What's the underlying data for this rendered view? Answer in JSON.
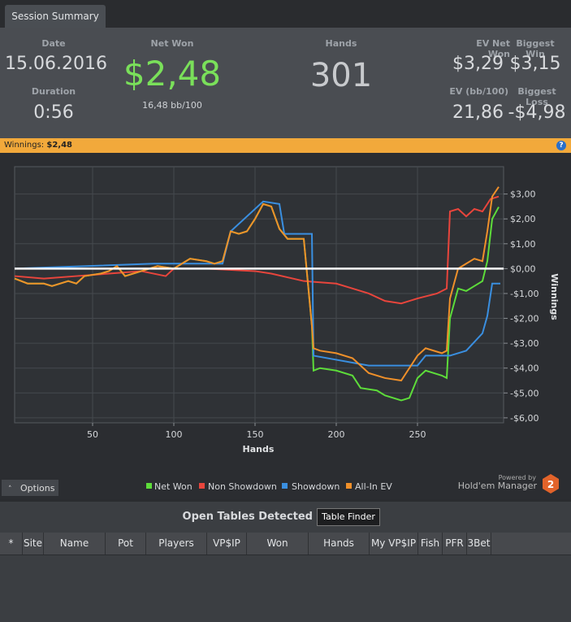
{
  "tab": "Session Summary",
  "summary": {
    "date_label": "Date",
    "date": "15.06.2016",
    "duration_label": "Duration",
    "duration": "0:56",
    "net_won_label": "Net Won",
    "net_won": "$2,48",
    "net_won_bb": "16,48 bb/100",
    "hands_label": "Hands",
    "hands": "301",
    "ev_net_won_label": "EV Net Won",
    "ev_net_won": "$3,29",
    "biggest_win_label": "Biggest Win",
    "biggest_win": "$3,15",
    "ev_bb_label": "EV (bb/100)",
    "ev_bb": "21,86",
    "biggest_loss_label": "Biggest Loss",
    "biggest_loss": "-$4,98"
  },
  "winnings_bar": {
    "label": "Winnings:",
    "value": "$2,48",
    "help": "?"
  },
  "chart_data": {
    "type": "line",
    "x_label": "Hands",
    "y_label": "Winnings",
    "xlim": [
      2,
      303
    ],
    "xticks": [
      50,
      100,
      150,
      200,
      250
    ],
    "ylim": [
      -6.2,
      4.1
    ],
    "yticks": [
      {
        "value": 3,
        "label": "$3,00"
      },
      {
        "value": 2,
        "label": "$2,00"
      },
      {
        "value": 1,
        "label": "$1,00"
      },
      {
        "value": 0,
        "label": "$0,00"
      },
      {
        "value": -1,
        "label": "-$1,00"
      },
      {
        "value": -2,
        "label": "-$2,00"
      },
      {
        "value": -3,
        "label": "-$3,00"
      },
      {
        "value": -4,
        "label": "-$4,00"
      },
      {
        "value": -5,
        "label": "-$5,00"
      },
      {
        "value": -6,
        "label": "-$6,00"
      }
    ],
    "grid": true,
    "series": [
      {
        "name": "Net Won",
        "color": "#5ddc3a",
        "x": [
          2,
          10,
          20,
          25,
          35,
          40,
          45,
          55,
          60,
          65,
          70,
          80,
          90,
          100,
          105,
          110,
          120,
          125,
          130,
          135,
          140,
          145,
          150,
          155,
          160,
          165,
          170,
          180,
          185,
          186,
          190,
          200,
          210,
          215,
          225,
          230,
          240,
          245,
          250,
          255,
          265,
          268,
          270,
          275,
          280,
          285,
          290,
          293,
          296,
          300
        ],
        "values": [
          -0.4,
          -0.6,
          -0.6,
          -0.7,
          -0.5,
          -0.6,
          -0.3,
          -0.2,
          -0.1,
          0.1,
          -0.3,
          -0.1,
          0.1,
          0.0,
          0.2,
          0.4,
          0.3,
          0.2,
          0.3,
          1.5,
          1.4,
          1.5,
          2.0,
          2.6,
          2.5,
          1.6,
          1.2,
          1.2,
          -2.3,
          -4.1,
          -4.0,
          -4.1,
          -4.3,
          -4.8,
          -4.9,
          -5.1,
          -5.3,
          -5.2,
          -4.4,
          -4.1,
          -4.3,
          -4.4,
          -2.0,
          -0.8,
          -0.9,
          -0.7,
          -0.5,
          0.3,
          2.0,
          2.48
        ]
      },
      {
        "name": "Non Showdown",
        "color": "#e8453c",
        "x": [
          2,
          20,
          40,
          60,
          80,
          95,
          100,
          120,
          150,
          160,
          180,
          200,
          210,
          220,
          230,
          240,
          250,
          262,
          268,
          270,
          275,
          280,
          285,
          290,
          295,
          300
        ],
        "values": [
          -0.3,
          -0.4,
          -0.3,
          -0.2,
          -0.1,
          -0.3,
          0.0,
          0.0,
          -0.1,
          -0.2,
          -0.5,
          -0.6,
          -0.8,
          -1.0,
          -1.3,
          -1.4,
          -1.2,
          -1.0,
          -0.8,
          2.3,
          2.4,
          2.1,
          2.4,
          2.3,
          2.8,
          2.9
        ]
      },
      {
        "name": "Showdown",
        "color": "#3a8fe0",
        "x": [
          2,
          88,
          130,
          135,
          155,
          165,
          168,
          185,
          186,
          220,
          250,
          255,
          270,
          280,
          290,
          293,
          296,
          301
        ],
        "values": [
          0.0,
          0.2,
          0.2,
          1.5,
          2.7,
          2.6,
          1.4,
          1.4,
          -3.5,
          -3.9,
          -3.9,
          -3.5,
          -3.5,
          -3.3,
          -2.6,
          -1.9,
          -0.6,
          -0.6
        ]
      },
      {
        "name": "All-In EV",
        "color": "#f0902a",
        "x": [
          2,
          10,
          20,
          25,
          35,
          40,
          45,
          55,
          60,
          65,
          70,
          80,
          90,
          100,
          105,
          110,
          120,
          125,
          130,
          135,
          140,
          145,
          150,
          155,
          160,
          165,
          170,
          180,
          185,
          186,
          190,
          200,
          210,
          220,
          230,
          240,
          250,
          255,
          265,
          268,
          270,
          275,
          280,
          285,
          290,
          293,
          296,
          300
        ],
        "values": [
          -0.4,
          -0.6,
          -0.6,
          -0.7,
          -0.5,
          -0.6,
          -0.3,
          -0.2,
          -0.1,
          0.1,
          -0.3,
          -0.1,
          0.1,
          0.0,
          0.2,
          0.4,
          0.3,
          0.2,
          0.3,
          1.5,
          1.4,
          1.5,
          2.0,
          2.6,
          2.5,
          1.6,
          1.2,
          1.2,
          -2.3,
          -3.2,
          -3.3,
          -3.4,
          -3.6,
          -4.2,
          -4.4,
          -4.5,
          -3.5,
          -3.2,
          -3.4,
          -3.3,
          -1.2,
          0.0,
          0.2,
          0.4,
          0.3,
          1.5,
          2.9,
          3.29
        ]
      }
    ]
  },
  "options": "Options",
  "branding": {
    "powered_by": "Powered by",
    "product": "Hold'em Manager",
    "version": "2"
  },
  "open_tables": {
    "title": "Open Tables Detected",
    "button": "Table Finder",
    "columns": [
      "*",
      "Site",
      "Name",
      "Pot",
      "Players",
      "VP$IP",
      "Won",
      "Hands",
      "My VP$IP",
      "Fish",
      "PFR",
      "3Bet"
    ]
  }
}
